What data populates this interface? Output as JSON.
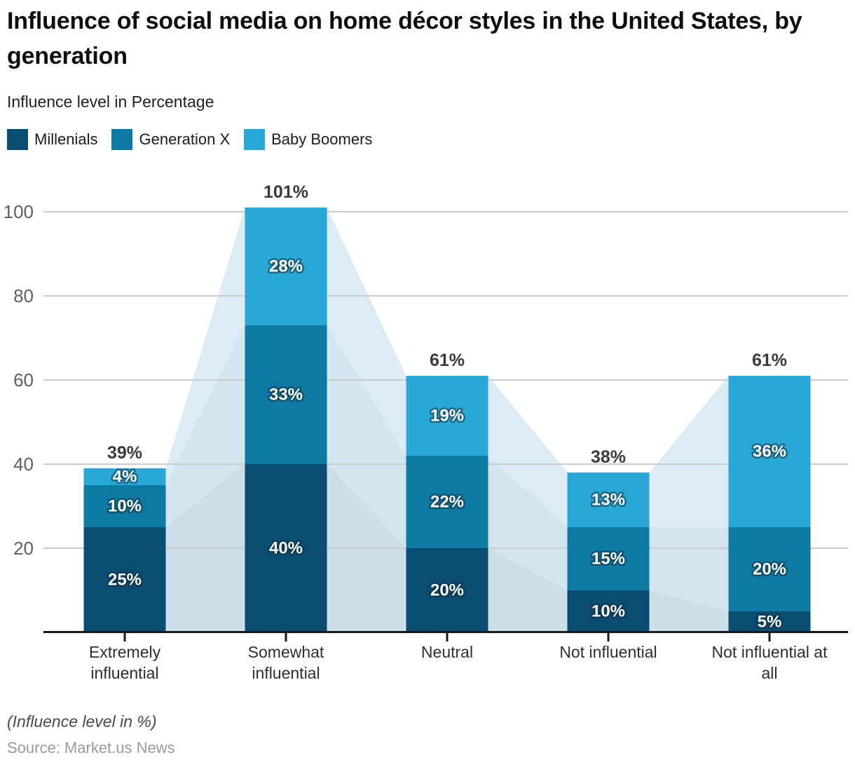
{
  "header": {
    "title": "Influence of social media on home décor styles in the United States, by generation",
    "subtitle": "Influence level in Percentage"
  },
  "legend": {
    "items": [
      {
        "label": "Millenials",
        "color": "#0b4d72"
      },
      {
        "label": "Generation X",
        "color": "#0e7aa3"
      },
      {
        "label": "Baby Boomers",
        "color": "#29a7d6"
      }
    ]
  },
  "chart_data": {
    "type": "bar",
    "stacked": true,
    "title": "Influence of social media on home décor styles in the United States, by generation",
    "ylabel": "Influence level in Percentage",
    "categories": [
      "Extremely influential",
      "Somewhat influential",
      "Neutral",
      "Not influential",
      "Not influential at all"
    ],
    "category_lines": [
      [
        "Extremely",
        "influential"
      ],
      [
        "Somewhat",
        "influential"
      ],
      [
        "Neutral"
      ],
      [
        "Not influential"
      ],
      [
        "Not influential at",
        "all"
      ]
    ],
    "series": [
      {
        "name": "Millenials",
        "color": "#0b4d72",
        "values": [
          25,
          40,
          20,
          10,
          5
        ],
        "labels": [
          "25%",
          "40%",
          "20%",
          "10%",
          "5%"
        ]
      },
      {
        "name": "Generation X",
        "color": "#0e7aa3",
        "values": [
          10,
          33,
          22,
          15,
          20
        ],
        "labels": [
          "10%",
          "33%",
          "22%",
          "15%",
          "20%"
        ]
      },
      {
        "name": "Baby Boomers",
        "color": "#29a7d6",
        "values": [
          4,
          28,
          19,
          13,
          36
        ],
        "labels": [
          "4%",
          "28%",
          "19%",
          "13%",
          "36%"
        ]
      }
    ],
    "totals": [
      39,
      101,
      61,
      38,
      61
    ],
    "total_labels": [
      "39%",
      "101%",
      "61%",
      "38%",
      "61%"
    ],
    "y_ticks": [
      20,
      40,
      60,
      80,
      100
    ],
    "ylim": [
      0,
      105
    ],
    "grid": true,
    "legend_position": "top",
    "gridline_color": "#cccccc",
    "axis_color": "#1a1a1a",
    "background_silhouette": {
      "description": "translucent stacked area behind bars connecting cumulative bar tops",
      "base_color": "#dbecf6",
      "overlay_color": "rgba(125,148,162,0.08)"
    }
  },
  "footer": {
    "note": "(Influence level in %)",
    "source": "Source: Market.us News"
  }
}
